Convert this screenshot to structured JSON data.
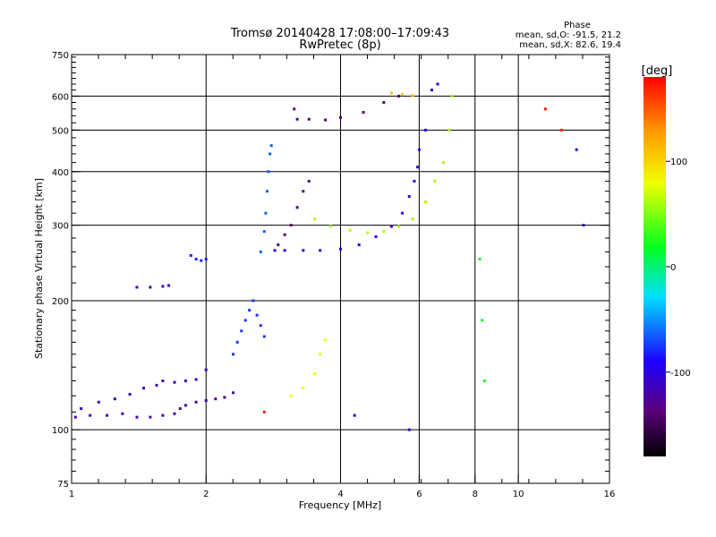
{
  "chart_data": {
    "type": "scatter",
    "title": "Tromsø 20140428 17:08:00–17:09:43",
    "subtitle": "RwPretec (8p)",
    "xlabel": "Frequency [MHz]",
    "ylabel": "Stationary phase Virtual Height [km]",
    "x_scale": "log2",
    "y_scale": "log",
    "xlim": [
      1,
      16
    ],
    "ylim": [
      75,
      750
    ],
    "x_ticks": [
      1,
      2,
      4,
      6,
      8,
      10,
      16
    ],
    "x_tick_labels": [
      "1",
      "2",
      "4",
      "6",
      "8",
      "10",
      "16"
    ],
    "x_grid_lines": [
      2,
      4,
      6,
      8,
      10
    ],
    "y_ticks": [
      75,
      100,
      200,
      300,
      400,
      500,
      600,
      750
    ],
    "y_tick_labels": [
      "75",
      "100",
      "200",
      "300",
      "400",
      "500",
      "600",
      "750"
    ],
    "y_grid_lines": [
      100,
      200,
      300,
      400,
      500,
      600
    ],
    "grid": true,
    "phase_stats": {
      "title": "Phase",
      "line_o": "mean, sd,O: -91.5, 21.2",
      "line_x": "mean, sd,X:  82.6, 19.4"
    },
    "colorbar": {
      "label": "[deg]",
      "range": [
        -180,
        180
      ],
      "ticks": [
        100,
        0,
        -100
      ],
      "tick_labels": [
        "100",
        "0",
        "-100"
      ],
      "colormap": "rainbow"
    },
    "series": [
      {
        "phase": -120,
        "points": [
          [
            1.02,
            107
          ],
          [
            1.1,
            108
          ],
          [
            1.2,
            108
          ],
          [
            1.3,
            109
          ],
          [
            1.4,
            107
          ],
          [
            1.5,
            107
          ],
          [
            1.6,
            108
          ],
          [
            1.7,
            109
          ],
          [
            1.75,
            112
          ],
          [
            1.8,
            114
          ],
          [
            1.9,
            116
          ],
          [
            2.0,
            117
          ],
          [
            2.1,
            118
          ],
          [
            2.2,
            119
          ],
          [
            2.3,
            122
          ]
        ]
      },
      {
        "phase": -110,
        "points": [
          [
            1.05,
            112
          ],
          [
            1.15,
            116
          ],
          [
            1.25,
            118
          ],
          [
            1.35,
            121
          ],
          [
            1.45,
            125
          ],
          [
            1.55,
            127
          ],
          [
            1.6,
            130
          ],
          [
            1.7,
            129
          ],
          [
            1.8,
            130
          ],
          [
            1.9,
            131
          ],
          [
            2.0,
            138
          ]
        ]
      },
      {
        "phase": -115,
        "points": [
          [
            1.4,
            215
          ],
          [
            1.5,
            215
          ],
          [
            1.6,
            216
          ],
          [
            1.65,
            217
          ]
        ]
      },
      {
        "phase": -80,
        "points": [
          [
            1.85,
            255
          ],
          [
            1.9,
            250
          ],
          [
            1.95,
            248
          ],
          [
            2.0,
            250
          ]
        ]
      },
      {
        "phase": -75,
        "points": [
          [
            2.3,
            150
          ],
          [
            2.35,
            160
          ],
          [
            2.4,
            170
          ],
          [
            2.45,
            180
          ],
          [
            2.5,
            190
          ],
          [
            2.55,
            200
          ],
          [
            2.6,
            185
          ],
          [
            2.65,
            175
          ],
          [
            2.7,
            165
          ]
        ]
      },
      {
        "phase": -65,
        "points": [
          [
            2.65,
            260
          ],
          [
            2.7,
            290
          ],
          [
            2.72,
            320
          ],
          [
            2.74,
            360
          ],
          [
            2.76,
            400
          ],
          [
            2.78,
            440
          ],
          [
            2.8,
            460
          ]
        ]
      },
      {
        "phase": -100,
        "points": [
          [
            2.85,
            262
          ],
          [
            3.0,
            262
          ],
          [
            3.3,
            262
          ],
          [
            3.6,
            262
          ],
          [
            4.0,
            264
          ],
          [
            4.4,
            270
          ],
          [
            4.8,
            282
          ],
          [
            5.2,
            298
          ],
          [
            5.5,
            320
          ],
          [
            5.7,
            350
          ],
          [
            5.85,
            380
          ],
          [
            5.95,
            410
          ],
          [
            6.0,
            450
          ]
        ]
      },
      {
        "phase": -140,
        "points": [
          [
            2.9,
            270
          ],
          [
            3.0,
            285
          ],
          [
            3.1,
            300
          ],
          [
            3.2,
            330
          ],
          [
            3.3,
            360
          ],
          [
            3.4,
            380
          ]
        ]
      },
      {
        "phase": -140,
        "points": [
          [
            3.15,
            560
          ],
          [
            3.2,
            530
          ],
          [
            3.4,
            530
          ],
          [
            3.7,
            528
          ],
          [
            4.0,
            535
          ],
          [
            4.5,
            550
          ],
          [
            5.0,
            580
          ],
          [
            5.4,
            600
          ]
        ]
      },
      {
        "phase": 60,
        "points": [
          [
            3.5,
            310
          ],
          [
            3.8,
            298
          ],
          [
            4.2,
            292
          ],
          [
            4.6,
            288
          ],
          [
            5.0,
            290
          ],
          [
            5.4,
            298
          ],
          [
            5.8,
            310
          ],
          [
            6.2,
            340
          ],
          [
            6.5,
            380
          ],
          [
            6.8,
            420
          ],
          [
            7.0,
            500
          ],
          [
            7.1,
            600
          ]
        ]
      },
      {
        "phase": 110,
        "points": [
          [
            5.2,
            610
          ],
          [
            5.5,
            605
          ],
          [
            5.8,
            602
          ]
        ]
      },
      {
        "phase": 80,
        "points": [
          [
            3.1,
            120
          ],
          [
            3.3,
            125
          ],
          [
            3.5,
            135
          ],
          [
            3.6,
            150
          ],
          [
            3.7,
            162
          ]
        ]
      },
      {
        "phase": -90,
        "points": [
          [
            6.2,
            500
          ],
          [
            6.4,
            620
          ],
          [
            6.6,
            640
          ]
        ]
      },
      {
        "phase": 20,
        "points": [
          [
            8.2,
            250
          ],
          [
            8.3,
            180
          ],
          [
            8.4,
            130
          ]
        ]
      },
      {
        "phase": 170,
        "points": [
          [
            2.7,
            110
          ],
          [
            11.5,
            560
          ],
          [
            12.5,
            500
          ]
        ]
      },
      {
        "phase": -110,
        "points": [
          [
            5.7,
            100
          ],
          [
            4.3,
            108
          ],
          [
            13.5,
            450
          ],
          [
            14,
            300
          ]
        ]
      }
    ]
  }
}
